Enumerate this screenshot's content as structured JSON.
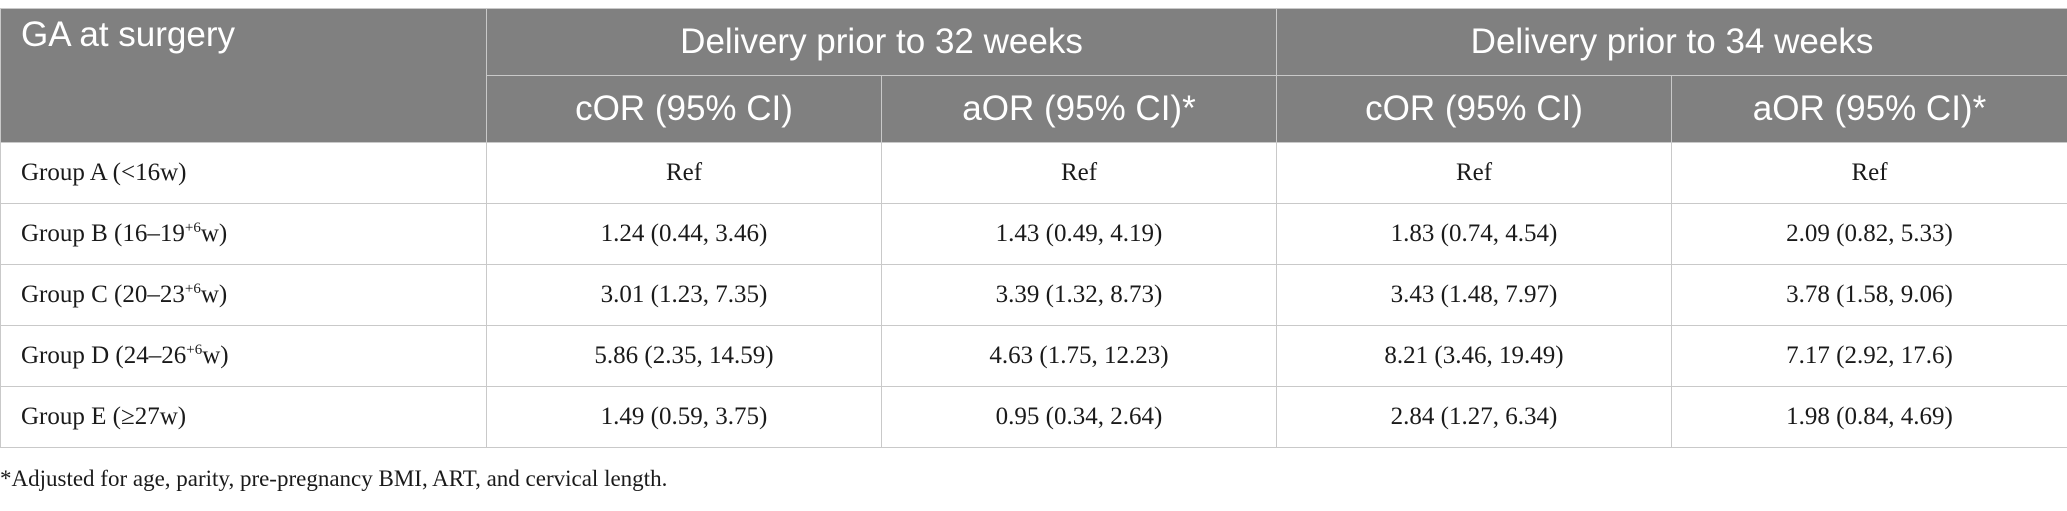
{
  "table": {
    "stub_header": "GA at surgery",
    "groups": [
      "Delivery prior to 32 weeks",
      "Delivery prior to 34 weeks"
    ],
    "subheaders": [
      "cOR (95% CI)",
      "aOR (95% CI)*",
      "cOR (95% CI)",
      "aOR (95% CI)*"
    ],
    "rows": [
      {
        "label": "Group A (<16w)",
        "label_pre": "",
        "label_sup": "",
        "label_post": "",
        "cells": [
          "Ref",
          "Ref",
          "Ref",
          "Ref"
        ]
      },
      {
        "label": "",
        "label_pre": "Group B (16–19",
        "label_sup": "+6",
        "label_post": "w)",
        "cells": [
          "1.24 (0.44, 3.46)",
          "1.43 (0.49, 4.19)",
          "1.83 (0.74, 4.54)",
          "2.09 (0.82, 5.33)"
        ]
      },
      {
        "label": "",
        "label_pre": "Group C (20–23",
        "label_sup": "+6",
        "label_post": "w)",
        "cells": [
          "3.01 (1.23, 7.35)",
          "3.39 (1.32, 8.73)",
          "3.43 (1.48, 7.97)",
          "3.78 (1.58, 9.06)"
        ]
      },
      {
        "label": "",
        "label_pre": "Group D (24–26",
        "label_sup": "+6",
        "label_post": "w)",
        "cells": [
          "5.86 (2.35, 14.59)",
          "4.63 (1.75, 12.23)",
          "8.21 (3.46, 19.49)",
          "7.17 (2.92, 17.6)"
        ]
      },
      {
        "label": "Group E (≥27w)",
        "label_pre": "",
        "label_sup": "",
        "label_post": "",
        "cells": [
          "1.49 (0.59, 3.75)",
          "0.95 (0.34, 2.64)",
          "2.84 (1.27, 6.34)",
          "1.98 (0.84, 4.69)"
        ]
      }
    ]
  },
  "footnote": "*Adjusted for age, parity, pre-pregnancy BMI, ART, and cervical length.",
  "colors": {
    "header_bg": "#808080",
    "header_text": "#ffffff",
    "border": "#c9c9c9",
    "body_text": "#1a1a1a"
  }
}
